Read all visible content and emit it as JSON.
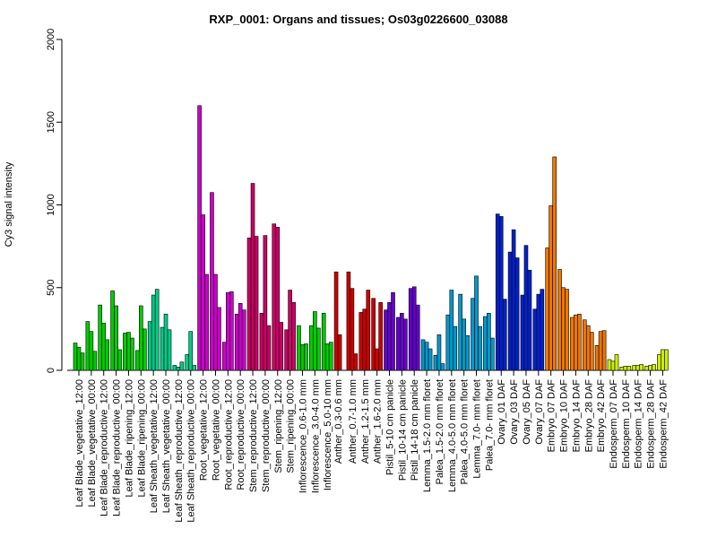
{
  "chart_data": {
    "type": "bar",
    "title": "RXP_0001: Organs and tissues; Os03g0226600_03088",
    "ylabel": "Cy3 signal intensity",
    "xlabel": "",
    "ylim": [
      0,
      2000
    ],
    "yticks": [
      0,
      500,
      1000,
      1500,
      2000
    ],
    "grid": false,
    "groups": [
      {
        "label": "Leaf Blade_vegetative_12:00",
        "color": "#00cc00",
        "values": [
          165,
          140,
          105
        ]
      },
      {
        "label": "Leaf Blade_vegetative_00:00",
        "color": "#00cc00",
        "values": [
          295,
          235,
          115
        ]
      },
      {
        "label": "Leaf Blade_reproductive_12:00",
        "color": "#00cc00",
        "values": [
          395,
          285,
          185
        ]
      },
      {
        "label": "Leaf Blade_reproductive_00:00",
        "color": "#00cc00",
        "values": [
          480,
          390,
          125
        ]
      },
      {
        "label": "Leaf Blade_ripening_12:00",
        "color": "#00cc00",
        "values": [
          225,
          230,
          195
        ]
      },
      {
        "label": "Leaf Blade_ripening_00:00",
        "color": "#00cc00",
        "values": [
          120,
          390,
          250
        ]
      },
      {
        "label": "Leaf Sheath_vegetative_12:00",
        "color": "#00cc88",
        "values": [
          295,
          455,
          490
        ]
      },
      {
        "label": "Leaf Sheath_vegetative_00:00",
        "color": "#00cc88",
        "values": [
          260,
          340,
          245
        ]
      },
      {
        "label": "Leaf Sheath_reproductive_12:00",
        "color": "#00cc88",
        "values": [
          30,
          20,
          50
        ]
      },
      {
        "label": "Leaf Sheath_reproductive_00:00",
        "color": "#00cc88",
        "values": [
          95,
          235,
          30
        ]
      },
      {
        "label": "Root_vegetative_12:00",
        "color": "#cc00cc",
        "values": [
          1600,
          940,
          580
        ]
      },
      {
        "label": "Root_vegetative_00:00",
        "color": "#cc00cc",
        "values": [
          1075,
          580,
          380
        ]
      },
      {
        "label": "Root_reproductive_12:00",
        "color": "#cc00cc",
        "values": [
          170,
          470,
          475
        ]
      },
      {
        "label": "Root_reproductive_00:00",
        "color": "#cc00cc",
        "values": [
          340,
          405,
          365
        ]
      },
      {
        "label": "Stem_reproductive_12:00",
        "color": "#cc0066",
        "values": [
          800,
          1130,
          810
        ]
      },
      {
        "label": "Stem_reproductive_00:00",
        "color": "#cc0066",
        "values": [
          345,
          815,
          270
        ]
      },
      {
        "label": "Stem_ripening_12:00",
        "color": "#cc0066",
        "values": [
          885,
          865,
          290
        ]
      },
      {
        "label": "Stem_ripening_00:00",
        "color": "#cc0066",
        "values": [
          245,
          485,
          410
        ]
      },
      {
        "label": "Inflorescence_0.6-1.0 mm",
        "color": "#00cc00",
        "values": [
          270,
          155,
          160
        ]
      },
      {
        "label": "Inflorescence_3.0-4.0 mm",
        "color": "#00cc00",
        "values": [
          270,
          355,
          255
        ]
      },
      {
        "label": "Inflorescence_5.0-10 mm",
        "color": "#00cc00",
        "values": [
          345,
          160,
          170
        ]
      },
      {
        "label": "Anther_0.3-0.6 mm",
        "color": "#cc0000",
        "values": [
          595,
          215
        ]
      },
      {
        "label": "Anther_0.7-1.0 mm",
        "color": "#cc0000",
        "values": [
          595,
          495,
          100
        ]
      },
      {
        "label": "Anther_1.2-1.5 mm",
        "color": "#cc0000",
        "values": [
          350,
          370,
          485
        ]
      },
      {
        "label": "Anther_1.6-2.0 mm",
        "color": "#cc0000",
        "values": [
          435,
          130,
          410
        ]
      },
      {
        "label": "Pistil_5-10 cm panicle",
        "color": "#6600cc",
        "values": [
          365,
          410,
          470
        ]
      },
      {
        "label": "Pistil_10-14 cm panicle",
        "color": "#6600cc",
        "values": [
          320,
          345,
          310
        ]
      },
      {
        "label": "Pistil_14-18 cm panicle",
        "color": "#6600cc",
        "values": [
          495,
          505,
          395
        ]
      },
      {
        "label": "Lemma_1.5-2.0 mm floret",
        "color": "#0099cc",
        "values": [
          185,
          170,
          130
        ]
      },
      {
        "label": "Palea_1.5-2.0 mm floret",
        "color": "#0099cc",
        "values": [
          90,
          215,
          40
        ]
      },
      {
        "label": "Lemma_4.0-5.0 mm floret",
        "color": "#0099cc",
        "values": [
          335,
          485,
          265
        ]
      },
      {
        "label": "Palea_4.0-5.0 mm floret",
        "color": "#0099cc",
        "values": [
          460,
          310,
          210
        ]
      },
      {
        "label": "Lemma_7.0- mm floret",
        "color": "#0099cc",
        "values": [
          435,
          570,
          265
        ]
      },
      {
        "label": "Palea_7.0- mm floret",
        "color": "#0099cc",
        "values": [
          325,
          345,
          195
        ]
      },
      {
        "label": "Ovary_01 DAF",
        "color": "#0022cc",
        "values": [
          945,
          930,
          430
        ]
      },
      {
        "label": "Ovary_03 DAF",
        "color": "#0022cc",
        "values": [
          715,
          850,
          680
        ]
      },
      {
        "label": "Ovary_05 DAF",
        "color": "#0022cc",
        "values": [
          455,
          755,
          605
        ]
      },
      {
        "label": "Ovary_07 DAF",
        "color": "#0022cc",
        "values": [
          370,
          460,
          490
        ]
      },
      {
        "label": "Embryo_07 DAF",
        "color": "#ee7700",
        "values": [
          740,
          995,
          1290
        ]
      },
      {
        "label": "Embryo_10 DAF",
        "color": "#ee7700",
        "values": [
          610,
          500,
          490
        ]
      },
      {
        "label": "Embryo_14 DAF",
        "color": "#ee7700",
        "values": [
          320,
          335,
          340
        ]
      },
      {
        "label": "Embryo_28 DAF",
        "color": "#ee7700",
        "values": [
          305,
          270,
          230
        ]
      },
      {
        "label": "Embryo_42 DAF",
        "color": "#ee7700",
        "values": [
          150,
          235,
          240
        ]
      },
      {
        "label": "Endosperm_07 DAF",
        "color": "#ccee00",
        "values": [
          65,
          55,
          95
        ]
      },
      {
        "label": "Endosperm_10 DAF",
        "color": "#ccee00",
        "values": [
          20,
          25,
          25
        ]
      },
      {
        "label": "Endosperm_14 DAF",
        "color": "#ccee00",
        "values": [
          30,
          30,
          35
        ]
      },
      {
        "label": "Endosperm_28 DAF",
        "color": "#ccee00",
        "values": [
          25,
          30,
          35
        ]
      },
      {
        "label": "Endosperm_42 DAF",
        "color": "#ccee00",
        "values": [
          95,
          125,
          125
        ]
      }
    ],
    "x_tick_labels": [
      "Leaf Blade_vegetative_12:00",
      "Leaf Blade_vegetative_00:00",
      "Leaf Blade_reproductive_12:00",
      "Leaf Blade_reproductive_00:00",
      "Leaf Blade_ripening_12:00",
      "Leaf Blade_ripening_00:00",
      "Leaf Sheath_vegetative_12:00",
      "Leaf Sheath_vegetative_00:00",
      "Leaf Sheath_reproductive_12:00",
      "Leaf Sheath_reproductive_00:00",
      "Root_vegetative_12:00",
      "Root_vegetative_00:00",
      "Root_reproductive_12:00",
      "Root_reproductive_00:00",
      "Stem_reproductive_12:00",
      "Stem_reproductive_00:00",
      "Stem_ripening_12:00",
      "Stem_ripening_00:00",
      "Inflorescence_0.6-1.0 mm",
      "Inflorescence_3.0-4.0 mm",
      "Inflorescence_5.0-10 mm",
      "Anther_0.3-0.6 mm",
      "Anther_0.7-1.0 mm",
      "Anther_1.2-1.5 mm",
      "Anther_1.6-2.0 mm",
      "Pistil_5-10 cm panicle",
      "Pistil_10-14 cm panicle",
      "Pistil_14-18 cm panicle",
      "Lemma_1.5-2.0 mm floret",
      "Palea_1.5-2.0 mm floret",
      "Lemma_4.0-5.0 mm floret",
      "Palea_4.0-5.0 mm floret",
      "Lemma_7.0- mm floret",
      "Palea_7.0- mm floret",
      "Ovary_01 DAF",
      "Ovary_03 DAF",
      "Ovary_05 DAF",
      "Ovary_07 DAF",
      "Embryo_07 DAF",
      "Embryo_10 DAF",
      "Embryo_14 DAF",
      "Embryo_28 DAF",
      "Embryo_42 DAF",
      "Endosperm_07 DAF",
      "Endosperm_10 DAF",
      "Endosperm_14 DAF",
      "Endosperm_28 DAF",
      "Endosperm_42 DAF"
    ]
  }
}
